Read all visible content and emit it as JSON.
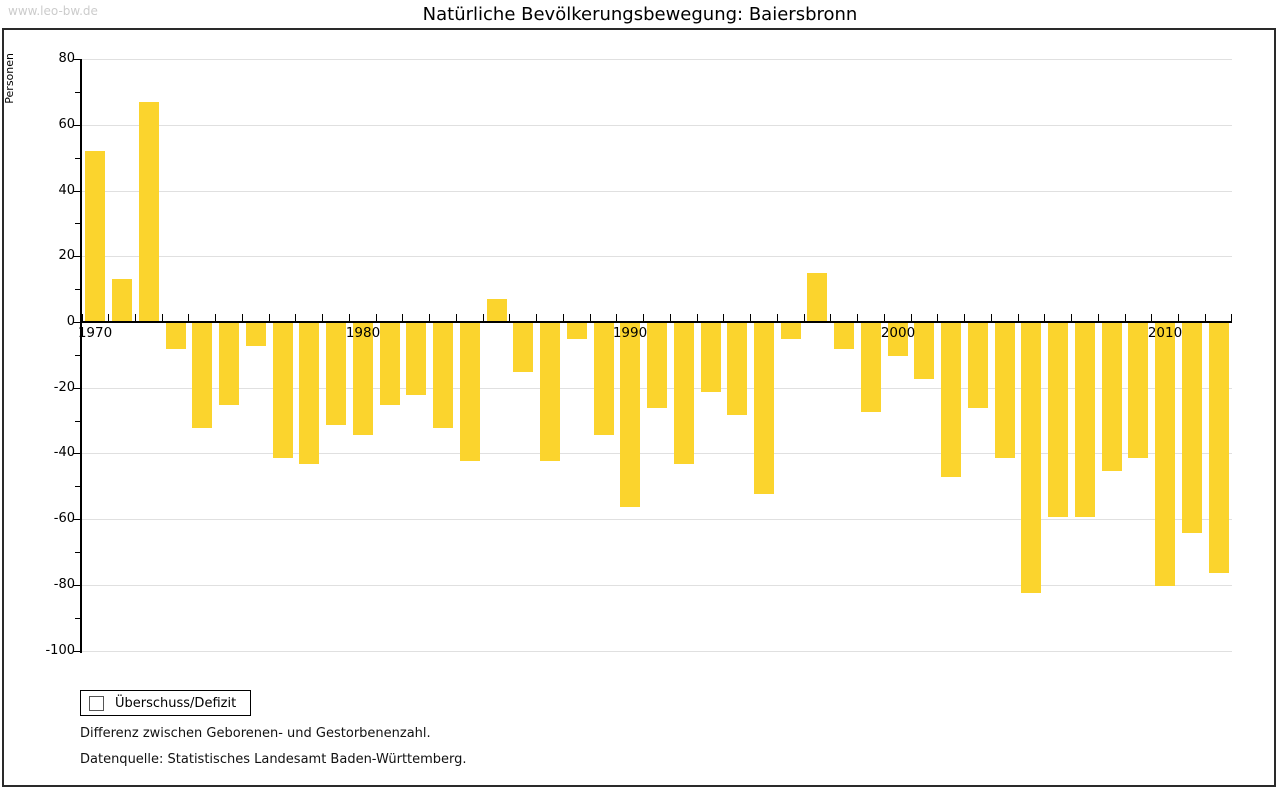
{
  "watermark": "www.leo-bw.de",
  "notes": [
    "Differenz zwischen Geborenen- und Gestorbenenzahl.",
    "Datenquelle: Statistisches Landesamt Baden-Württemberg."
  ],
  "colors": {
    "bar": "#FBD42D",
    "grid": "#E0E0E0",
    "axis": "#000000",
    "frame": "#2A2A2A",
    "watermark_text": "#CCCCCC"
  },
  "chart_data": {
    "type": "bar",
    "title": "Natürliche Bevölkerungsbewegung: Baiersbronn",
    "ylabel": "Personen",
    "xlabel": "",
    "ylim": [
      -100,
      80
    ],
    "grid": true,
    "legend_position": "bottom-left",
    "y_ticks": [
      80,
      60,
      40,
      20,
      0,
      -20,
      -40,
      -60,
      -80,
      -100
    ],
    "x_tick_years": [
      1970,
      1980,
      1990,
      2000,
      2010
    ],
    "x": [
      1970,
      1971,
      1972,
      1973,
      1974,
      1975,
      1976,
      1977,
      1978,
      1979,
      1980,
      1981,
      1982,
      1983,
      1984,
      1985,
      1986,
      1987,
      1988,
      1989,
      1990,
      1991,
      1992,
      1993,
      1994,
      1995,
      1996,
      1997,
      1998,
      1999,
      2000,
      2001,
      2002,
      2003,
      2004,
      2005,
      2006,
      2007,
      2008,
      2009,
      2010,
      2011,
      2012
    ],
    "series": [
      {
        "name": "Überschuss/Defizit",
        "values": [
          52,
          13,
          67,
          -8,
          -32,
          -25,
          -7,
          -41,
          -43,
          -31,
          -34,
          -25,
          -22,
          -32,
          -42,
          7,
          -15,
          -42,
          -5,
          -34,
          -56,
          -26,
          -43,
          -21,
          -28,
          -52,
          -5,
          15,
          -8,
          -27,
          -10,
          -17,
          -47,
          -26,
          -41,
          -82,
          -59,
          -59,
          -45,
          -41,
          -80,
          -64,
          -76
        ]
      }
    ]
  }
}
